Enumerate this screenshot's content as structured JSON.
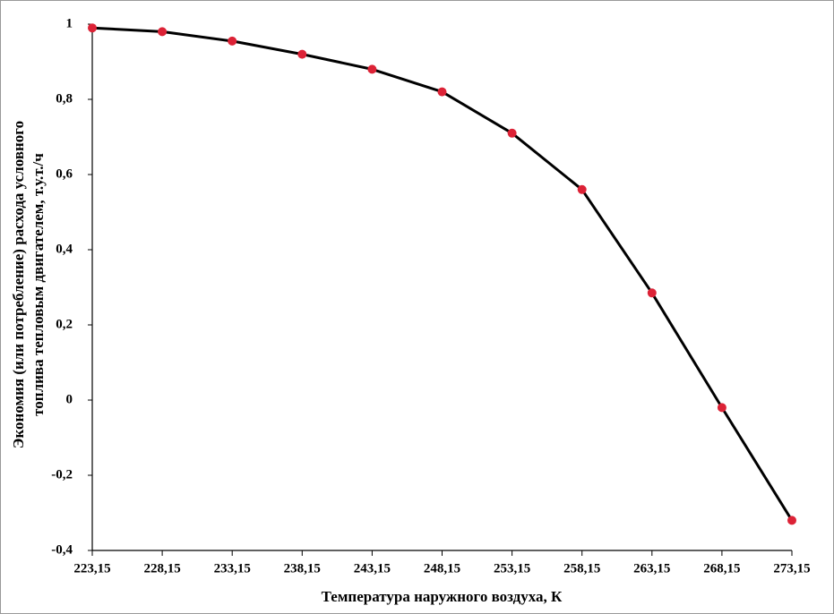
{
  "chart_data": {
    "type": "line",
    "xlabel": "Температура наружного воздуха, К",
    "ylabel": [
      "Экономия (или потребление) расхода условного",
      "топлива тепловым двигателем, т.у.т./ч"
    ],
    "x": [
      223.15,
      228.15,
      233.15,
      238.15,
      243.15,
      248.15,
      253.15,
      258.15,
      263.15,
      268.15,
      273.15
    ],
    "series": [
      {
        "color": "#000000",
        "marker_color": "#dc2236",
        "values": [
          0.99,
          0.98,
          0.955,
          0.92,
          0.88,
          0.82,
          0.71,
          0.56,
          0.285,
          -0.02,
          -0.32
        ]
      }
    ],
    "xlim": [
      223.15,
      273.15
    ],
    "xticks": [
      {
        "value": 223.15,
        "label": "223,15"
      },
      {
        "value": 228.15,
        "label": "228,15"
      },
      {
        "value": 233.15,
        "label": "233,15"
      },
      {
        "value": 238.15,
        "label": "238,15"
      },
      {
        "value": 243.15,
        "label": "243,15"
      },
      {
        "value": 248.15,
        "label": "248,15"
      },
      {
        "value": 253.15,
        "label": "253,15"
      },
      {
        "value": 258.15,
        "label": "258,15"
      },
      {
        "value": 263.15,
        "label": "263,15"
      },
      {
        "value": 268.15,
        "label": "268,15"
      },
      {
        "value": 273.15,
        "label": "273,15"
      }
    ],
    "ylim": [
      -0.4,
      1
    ],
    "yticks": [
      {
        "value": -0.4,
        "label": "-0,4"
      },
      {
        "value": -0.2,
        "label": "-0,2"
      },
      0,
      {
        "value": 0.2,
        "label": "0,2"
      },
      {
        "value": 0.4,
        "label": "0,4"
      },
      {
        "value": 0.6,
        "label": "0,6"
      },
      {
        "value": 0.8,
        "label": "0,8"
      },
      1
    ],
    "grid": false
  }
}
